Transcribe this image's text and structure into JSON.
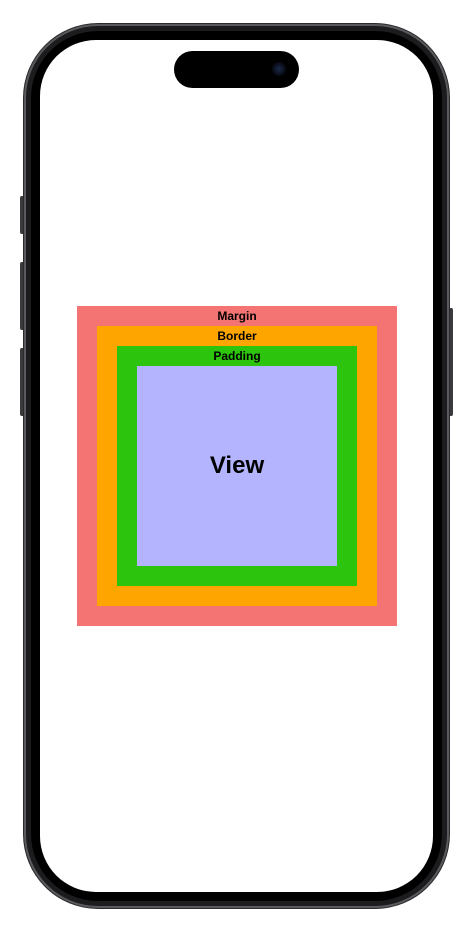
{
  "colors": {
    "margin": "#f47373",
    "border": "#ffa500",
    "padding": "#2cc40c",
    "view": "#b4b4fe"
  },
  "diagram": {
    "margin_label": "Margin",
    "border_label": "Border",
    "padding_label": "Padding",
    "view_label": "View"
  }
}
